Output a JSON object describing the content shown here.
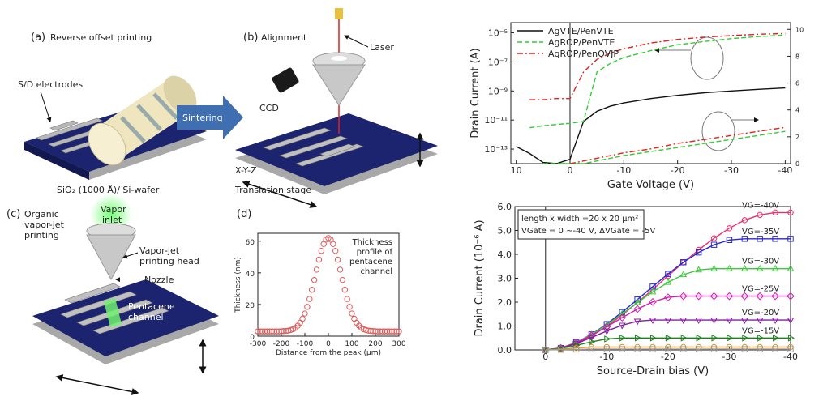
{
  "figure": {
    "panel_a": {
      "label": "(a)",
      "title": "Reverse offset printing",
      "electrodes": "S/D electrodes",
      "substrate": "SiO₂ (1000 Å)/ Si-wafer",
      "arrow": "Sintering"
    },
    "panel_b": {
      "label": "(b)",
      "title": "Alignment",
      "laser": "Laser",
      "camera": "CCD",
      "stage": [
        "X-Y-Z",
        "Translation stage"
      ]
    },
    "panel_c": {
      "label": "(c)",
      "title": [
        "Organic",
        "vapor-jet",
        "printing"
      ],
      "inlet": [
        "Vapor",
        "inlet"
      ],
      "head": [
        "Vapor-jet",
        "printing head"
      ],
      "nozzle": "Nozzle",
      "channel": [
        "Pentacene",
        "channel"
      ]
    },
    "panel_d": {
      "label": "(d)"
    }
  },
  "chart_data": [
    {
      "type": "scatter",
      "xlabel": "Distance from the peak (μm)",
      "ylabel": "Thickness (nm)",
      "annotation": [
        "Thickness",
        "profile of",
        "pentacene",
        "channel"
      ],
      "x": [
        -300,
        -290,
        -280,
        -270,
        -260,
        -250,
        -240,
        -230,
        -220,
        -210,
        -200,
        -190,
        -180,
        -170,
        -160,
        -150,
        -140,
        -130,
        -120,
        -110,
        -100,
        -90,
        -80,
        -70,
        -60,
        -50,
        -40,
        -30,
        -20,
        -10,
        0,
        10,
        20,
        30,
        40,
        50,
        60,
        70,
        80,
        90,
        100,
        110,
        120,
        130,
        140,
        150,
        160,
        170,
        180,
        190,
        200,
        210,
        220,
        230,
        240,
        250,
        260,
        270,
        280,
        290,
        300
      ],
      "values": [
        3,
        3,
        3,
        3,
        3,
        3,
        3,
        3,
        3,
        3,
        3.1,
        3.2,
        3.3,
        3.5,
        3.9,
        4.4,
        5.3,
        6.6,
        8.5,
        11,
        14.3,
        18.5,
        23.5,
        29.3,
        35.5,
        42,
        48.3,
        53.9,
        58.2,
        61,
        62,
        61,
        58.2,
        53.9,
        48.3,
        42,
        35.5,
        29.3,
        23.5,
        18.5,
        14.3,
        11,
        8.5,
        6.6,
        5.3,
        4.4,
        3.9,
        3.5,
        3.3,
        3.2,
        3.1,
        3,
        3,
        3,
        3,
        3,
        3,
        3,
        3,
        3,
        3
      ],
      "color": "#e05a5a",
      "marker": "circle-open",
      "xlim": [
        -300,
        300
      ],
      "xticks": [
        -300,
        -200,
        -100,
        0,
        100,
        200,
        300
      ],
      "ylim": [
        0,
        65
      ],
      "yticks": [
        0,
        20,
        40,
        60
      ]
    },
    {
      "type": "line",
      "xlabel": "Gate Voltage (V)",
      "ylabel": "Drain Current (A)",
      "log_y": true,
      "legend": "upper left",
      "x": [
        10,
        7.5,
        5,
        2.5,
        0,
        -2.5,
        -5,
        -7.5,
        -10,
        -15,
        -20,
        -25,
        -30,
        -35,
        -40
      ],
      "series": [
        {
          "name": "AgVTE/PenVTE",
          "color": "#111111",
          "dash": "solid",
          "values": [
            1.5e-13,
            5e-14,
            1.2e-14,
            1e-14,
            2e-14,
            8e-12,
            4e-11,
            9e-11,
            1.5e-10,
            3e-10,
            5e-10,
            7.5e-10,
            1e-09,
            1.3e-09,
            1.6e-09
          ]
        },
        {
          "name": "AgROP/PenVTE",
          "color": "#33cc33",
          "dash": "dashed",
          "values": [
            null,
            3e-12,
            4e-12,
            5e-12,
            6e-12,
            8e-12,
            2e-08,
            8e-08,
            2e-07,
            6e-07,
            1.5e-06,
            2.5e-06,
            4e-06,
            5.5e-06,
            7e-06
          ]
        },
        {
          "name": "AgROP/PenOVJP",
          "color": "#dd2222",
          "dash": "dashdot",
          "values": [
            null,
            2.5e-10,
            2.5e-10,
            3e-10,
            3e-10,
            2e-08,
            1.5e-07,
            4e-07,
            8e-07,
            2e-06,
            3.5e-06,
            5e-06,
            6.5e-06,
            8e-06,
            9e-06
          ]
        },
        {
          "color": "#33cc33",
          "dash": "dashed",
          "axis": "y2",
          "values": [
            null,
            null,
            0,
            0,
            0,
            0,
            0.2,
            0.4,
            0.6,
            0.9,
            1.2,
            1.5,
            1.8,
            2.1,
            2.4
          ]
        },
        {
          "color": "#dd2222",
          "dash": "dashdot",
          "axis": "y2",
          "values": [
            null,
            null,
            null,
            null,
            0,
            0.2,
            0.4,
            0.6,
            0.8,
            1.1,
            1.5,
            1.8,
            2.1,
            2.4,
            2.7
          ]
        }
      ],
      "xlim": [
        11,
        -41
      ],
      "xticks": [
        10,
        0,
        -10,
        -20,
        -30,
        -40
      ],
      "ylim": [
        1e-14,
        5e-05
      ],
      "yticks": [
        {
          "value": 1e-13,
          "label": "10⁻¹³"
        },
        {
          "value": 1e-11,
          "label": "10⁻¹¹"
        },
        {
          "value": 1e-09,
          "label": "10⁻⁹"
        },
        {
          "value": 1e-07,
          "label": "10⁻⁷"
        },
        {
          "value": 1e-05,
          "label": "10⁻⁵"
        }
      ],
      "y2lim": [
        0,
        10.5
      ],
      "y2ticks": [
        0,
        2,
        4,
        6,
        8,
        10
      ]
    },
    {
      "type": "line",
      "xlabel": "Source-Drain bias (V)",
      "ylabel": "Drain Current (10⁻⁶ A)",
      "legend": "at line ends",
      "annotation": [
        "length x width =20 x 20 μm²",
        "VGate = 0 ~-40 V, ΔVGate = -5V"
      ],
      "x": [
        0,
        -2.5,
        -5,
        -7.5,
        -10,
        -12.5,
        -15,
        -17.5,
        -20,
        -22.5,
        -25,
        -27.5,
        -30,
        -32.5,
        -35,
        -37.5,
        -40
      ],
      "series": [
        {
          "name": "VG=-40V",
          "color": "#e8306e",
          "marker": "circle",
          "values": [
            0,
            0.07,
            0.27,
            0.58,
            0.98,
            1.46,
            1.98,
            2.53,
            3.1,
            3.66,
            4.19,
            4.67,
            5.09,
            5.43,
            5.65,
            5.75,
            5.75
          ]
        },
        {
          "name": "VG=-35V",
          "color": "#2a2ad0",
          "marker": "square",
          "values": [
            0,
            0.08,
            0.31,
            0.65,
            1.08,
            1.58,
            2.11,
            2.65,
            3.18,
            3.67,
            4.08,
            4.4,
            4.6,
            4.65,
            4.65,
            4.65,
            4.65
          ]
        },
        {
          "name": "VG=-30V",
          "color": "#3ec83e",
          "marker": "triangle",
          "values": [
            0,
            0.08,
            0.31,
            0.64,
            1.05,
            1.51,
            1.98,
            2.43,
            2.83,
            3.15,
            3.35,
            3.4,
            3.4,
            3.4,
            3.4,
            3.4,
            3.4
          ]
        },
        {
          "name": "VG=-25V",
          "color": "#d020b0",
          "marker": "diamond",
          "values": [
            0,
            0.08,
            0.3,
            0.61,
            0.97,
            1.35,
            1.71,
            2.01,
            2.2,
            2.25,
            2.25,
            2.25,
            2.25,
            2.25,
            2.25,
            2.25,
            2.25
          ]
        },
        {
          "name": "VG=-20V",
          "color": "#8020a0",
          "marker": "triangle-down",
          "values": [
            0,
            0.07,
            0.26,
            0.52,
            0.79,
            1.03,
            1.2,
            1.25,
            1.25,
            1.25,
            1.25,
            1.25,
            1.25,
            1.25,
            1.25,
            1.25,
            1.25
          ]
        },
        {
          "name": "VG=-15V",
          "color": "#208020",
          "marker": "triangle-right",
          "values": [
            0,
            0.06,
            0.19,
            0.34,
            0.46,
            0.5,
            0.5,
            0.5,
            0.5,
            0.5,
            0.5,
            0.5,
            0.5,
            0.5,
            0.5,
            0.5,
            0.5
          ]
        },
        {
          "color": "#e09020",
          "marker": "circle",
          "values": [
            0,
            0.03,
            0.08,
            0.12,
            0.12,
            0.12,
            0.12,
            0.12,
            0.12,
            0.12,
            0.12,
            0.12,
            0.12,
            0.12,
            0.12,
            0.12,
            0.12
          ]
        },
        {
          "color": "#999999",
          "marker": "square",
          "values": [
            0,
            0.01,
            0.02,
            0.03,
            0.03,
            0.03,
            0.03,
            0.03,
            0.03,
            0.03,
            0.03,
            0.03,
            0.03,
            0.03,
            0.03,
            0.03,
            0.03
          ]
        }
      ],
      "xlim": [
        5,
        -40
      ],
      "xticks": [
        0,
        -10,
        -20,
        -30,
        -40
      ],
      "ylim": [
        0,
        6
      ],
      "yticks": [
        {
          "value": 0,
          "label": "0.0"
        },
        {
          "value": 1,
          "label": "1.0"
        },
        {
          "value": 2,
          "label": "2.0"
        },
        {
          "value": 3,
          "label": "3.0"
        },
        {
          "value": 4,
          "label": "4.0"
        },
        {
          "value": 5,
          "label": "5.0"
        },
        {
          "value": 6,
          "label": "6.0"
        }
      ]
    }
  ]
}
